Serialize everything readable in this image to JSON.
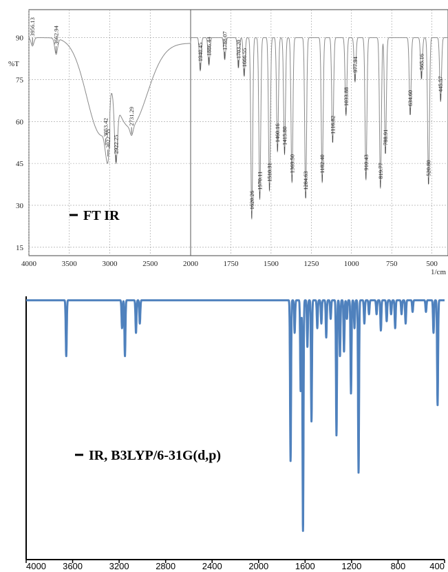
{
  "chart_data": [
    {
      "type": "line",
      "title": "",
      "legend_label": "FT IR",
      "xlabel": "",
      "ylabel": "%T",
      "x_unit": "1/cm",
      "xlim": [
        4000,
        400
      ],
      "ylim": [
        12,
        100
      ],
      "xticks": [
        4000,
        3500,
        3000,
        2500,
        2000,
        1750,
        1500,
        1250,
        1000,
        750,
        500
      ],
      "xtick_labels": [
        "4000",
        "3500",
        "3000",
        "2500",
        "2000",
        "1750",
        "1500",
        "1250",
        "1000",
        "750",
        "500"
      ],
      "yticks": [
        15,
        30,
        45,
        60,
        75,
        90
      ],
      "ytick_labels": [
        "15",
        "30",
        "45",
        "60",
        "75",
        "90"
      ],
      "grid": true,
      "line_color": "#8a8a8a",
      "peaks": [
        {
          "label": "3956.13",
          "x": 3956,
          "y": 87
        },
        {
          "label": "3662.94",
          "x": 3663,
          "y": 84
        },
        {
          "label": "3053.42",
          "x": 3053,
          "y": 51
        },
        {
          "label": "3022.55",
          "x": 3023,
          "y": 47
        },
        {
          "label": "2922.25",
          "x": 2922,
          "y": 45
        },
        {
          "label": "2731.29",
          "x": 2731,
          "y": 55
        },
        {
          "label": "1940.45",
          "x": 1940,
          "y": 78
        },
        {
          "label": "1886.44",
          "x": 1886,
          "y": 80
        },
        {
          "label": "1788.07",
          "x": 1788,
          "y": 82
        },
        {
          "label": "1703.20",
          "x": 1703,
          "y": 79
        },
        {
          "label": "1666.55",
          "x": 1667,
          "y": 76
        },
        {
          "label": "1620.26",
          "x": 1620,
          "y": 25
        },
        {
          "label": "1570.11",
          "x": 1570,
          "y": 32
        },
        {
          "label": "1510.31",
          "x": 1510,
          "y": 35
        },
        {
          "label": "1460.16",
          "x": 1460,
          "y": 49
        },
        {
          "label": "1415.80",
          "x": 1416,
          "y": 48
        },
        {
          "label": "1369.50",
          "x": 1370,
          "y": 38
        },
        {
          "label": "1284.63",
          "x": 1285,
          "y": 32
        },
        {
          "label": "1182.40",
          "x": 1182,
          "y": 38
        },
        {
          "label": "1116.82",
          "x": 1117,
          "y": 52
        },
        {
          "label": "1033.88",
          "x": 1034,
          "y": 62
        },
        {
          "label": "977.94",
          "x": 978,
          "y": 74
        },
        {
          "label": "910.43",
          "x": 910,
          "y": 39
        },
        {
          "label": "819.77",
          "x": 820,
          "y": 36
        },
        {
          "label": "788.91",
          "x": 789,
          "y": 48
        },
        {
          "label": "634.60",
          "x": 635,
          "y": 62
        },
        {
          "label": "565.16",
          "x": 565,
          "y": 75
        },
        {
          "label": "520.80",
          "x": 521,
          "y": 37
        },
        {
          "label": "445.57",
          "x": 446,
          "y": 67
        }
      ]
    },
    {
      "type": "line",
      "title": "",
      "legend_label": "IR, B3LYP/6-31G(d,p)",
      "xlabel": "",
      "ylabel": "",
      "xlim": [
        4000,
        400
      ],
      "ylim": [
        0,
        1
      ],
      "xticks": [
        4000,
        3600,
        3200,
        2800,
        2400,
        2000,
        1600,
        1200,
        800,
        400
      ],
      "xtick_labels": [
        "4000",
        "3600",
        "3200",
        "2800",
        "2400",
        "2000",
        "1600",
        "1200",
        "800",
        "400"
      ],
      "grid": false,
      "line_color": "#4f81bd",
      "baseline": 0.005,
      "bands": [
        {
          "x": 3655,
          "intensity": 0.24
        },
        {
          "x": 3175,
          "intensity": 0.12
        },
        {
          "x": 3150,
          "intensity": 0.24
        },
        {
          "x": 3055,
          "intensity": 0.14
        },
        {
          "x": 3022,
          "intensity": 0.1
        },
        {
          "x": 1725,
          "intensity": 0.69
        },
        {
          "x": 1690,
          "intensity": 0.14
        },
        {
          "x": 1638,
          "intensity": 0.39
        },
        {
          "x": 1618,
          "intensity": 0.99
        },
        {
          "x": 1580,
          "intensity": 0.2
        },
        {
          "x": 1545,
          "intensity": 0.52
        },
        {
          "x": 1495,
          "intensity": 0.12
        },
        {
          "x": 1460,
          "intensity": 0.1
        },
        {
          "x": 1418,
          "intensity": 0.16
        },
        {
          "x": 1380,
          "intensity": 0.08
        },
        {
          "x": 1330,
          "intensity": 0.58
        },
        {
          "x": 1300,
          "intensity": 0.24
        },
        {
          "x": 1265,
          "intensity": 0.22
        },
        {
          "x": 1240,
          "intensity": 0.08
        },
        {
          "x": 1205,
          "intensity": 0.4
        },
        {
          "x": 1175,
          "intensity": 0.12
        },
        {
          "x": 1140,
          "intensity": 0.74
        },
        {
          "x": 1090,
          "intensity": 0.1
        },
        {
          "x": 1050,
          "intensity": 0.06
        },
        {
          "x": 985,
          "intensity": 0.06
        },
        {
          "x": 948,
          "intensity": 0.13
        },
        {
          "x": 898,
          "intensity": 0.09
        },
        {
          "x": 860,
          "intensity": 0.06
        },
        {
          "x": 825,
          "intensity": 0.12
        },
        {
          "x": 770,
          "intensity": 0.06
        },
        {
          "x": 735,
          "intensity": 0.1
        },
        {
          "x": 675,
          "intensity": 0.05
        },
        {
          "x": 560,
          "intensity": 0.05
        },
        {
          "x": 495,
          "intensity": 0.14
        },
        {
          "x": 460,
          "intensity": 0.45
        }
      ]
    }
  ]
}
